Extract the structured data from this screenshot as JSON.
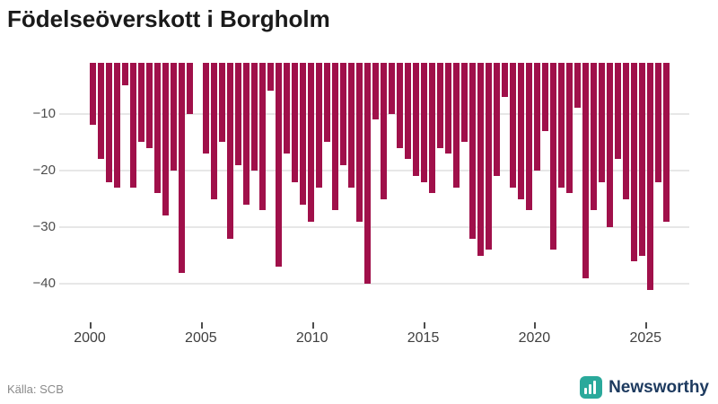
{
  "title": "Födelseöverskott i Borgholm",
  "source_label": "Källa: SCB",
  "branding": {
    "name": "Newsworthy",
    "icon": "bar-chart-icon",
    "icon_color": "#2aa99b",
    "text_color": "#1d3a5f"
  },
  "colors": {
    "background": "#ffffff",
    "bar": "#a0104a",
    "grid": "#e7e7e7",
    "axis_text": "#4d4d4d",
    "title_text": "#1a1a1a",
    "source_text": "#8a8a8a"
  },
  "chart_data": {
    "type": "bar",
    "title": "Födelseöverskott i Borgholm",
    "xlabel": "",
    "ylabel": "",
    "x_tick_labels": [
      "2000",
      "2005",
      "2010",
      "2015",
      "2020",
      "2025"
    ],
    "y_tick_labels": [
      "−10",
      "−20",
      "−30",
      "−40"
    ],
    "y_tick_values": [
      -10,
      -20,
      -30,
      -40
    ],
    "ylim": [
      -44,
      0
    ],
    "grid": "horizontal",
    "legend": "none",
    "bar_count": 72,
    "x_span_years": [
      2000,
      2026
    ],
    "values": [
      -12,
      -18,
      -22,
      -23,
      -5,
      -23,
      -15,
      -16,
      -24,
      -28,
      -20,
      -38,
      -10,
      0,
      -17,
      -25,
      -15,
      -32,
      -19,
      -26,
      -20,
      -27,
      -6,
      -37,
      -17,
      -22,
      -26,
      -29,
      -23,
      -15,
      -27,
      -19,
      -23,
      -29,
      -40,
      -11,
      -25,
      -10,
      -16,
      -18,
      -21,
      -22,
      -24,
      -16,
      -17,
      -23,
      -15,
      -32,
      -35,
      -34,
      -21,
      -7,
      -23,
      -25,
      -27,
      -20,
      -13,
      -34,
      -23,
      -24,
      -9,
      -39,
      -27,
      -22,
      -30,
      -18,
      -25,
      -36,
      -35,
      -41,
      -22,
      -29
    ]
  }
}
